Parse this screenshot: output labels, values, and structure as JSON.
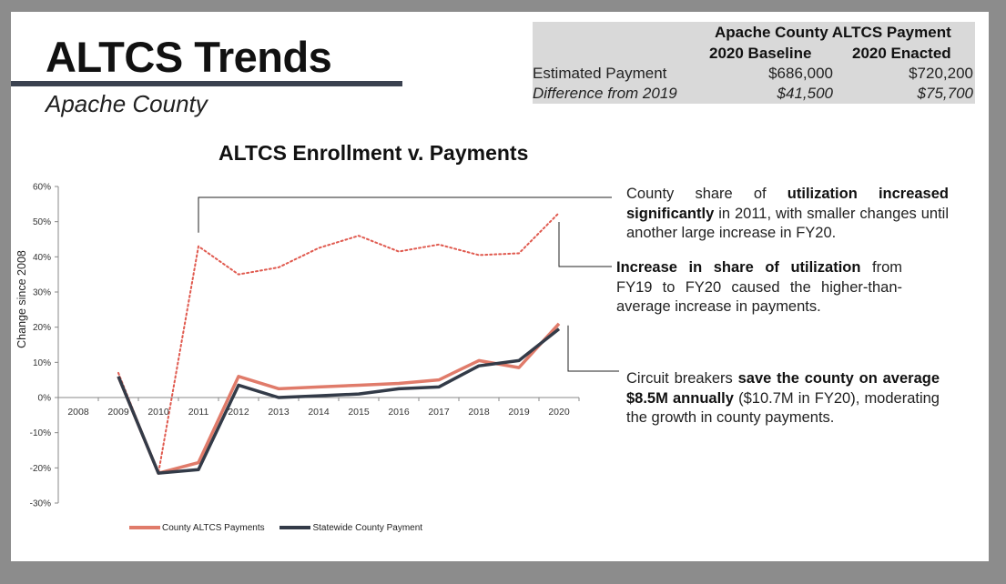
{
  "title": "ALTCS Trends",
  "subtitle": "Apache County",
  "summary_table": {
    "heading": "Apache County ALTCS Payment",
    "col1": "2020 Baseline",
    "col2": "2020 Enacted",
    "rows": [
      {
        "label": "Estimated Payment",
        "v1": "$686,000",
        "v2": "$720,200"
      },
      {
        "label": "Difference from 2019",
        "v1": "$41,500",
        "v2": "$75,700"
      }
    ]
  },
  "annotations": {
    "a1": {
      "pre": "County share of ",
      "bold": "utilization increased significantly",
      "post": " in 2011, with smaller changes until another large increase in FY20."
    },
    "a2": {
      "pre": "",
      "bold": "Increase in share of utilization",
      "post": " from FY19 to FY20 caused the higher-than-average increase in payments."
    },
    "a3": {
      "pre": "Circuit breakers ",
      "bold": "save the county on average $8.5M annually",
      "post": " ($10.7M in FY20), moderating the growth in county payments."
    }
  },
  "colors": {
    "county": "#e07b6a",
    "statewide": "#333b48",
    "utilization": "#e05a4f"
  },
  "chart_data": {
    "type": "line",
    "title": "ALTCS Enrollment v. Payments",
    "ylabel": "Change since 2008",
    "xlabel": "",
    "categories": [
      "2008",
      "2009",
      "2010",
      "2011",
      "2012",
      "2013",
      "2014",
      "2015",
      "2016",
      "2017",
      "2018",
      "2019",
      "2020"
    ],
    "yticks": [
      "60%",
      "50%",
      "40%",
      "30%",
      "20%",
      "10%",
      "0%",
      "-10%",
      "-20%",
      "-30%"
    ],
    "ylim": [
      -30,
      60
    ],
    "series": [
      {
        "name": "County ALTCS Payments",
        "style": "solid",
        "values": [
          null,
          6,
          -21.5,
          -18.5,
          6,
          2.5,
          3,
          3.5,
          4,
          5,
          10.5,
          8.5,
          21
        ]
      },
      {
        "name": "Statewide County Payment",
        "style": "solid",
        "values": [
          null,
          6,
          -21.5,
          -20.5,
          3.5,
          0,
          0.5,
          1,
          2.5,
          3,
          9,
          10.5,
          19.5
        ]
      },
      {
        "name": "",
        "style": "dotted",
        "values": [
          null,
          7,
          -21.5,
          43,
          35,
          37,
          42.5,
          46,
          41.5,
          43.5,
          40.5,
          41,
          52.5
        ]
      }
    ],
    "legend": "bottom",
    "grid": false
  }
}
